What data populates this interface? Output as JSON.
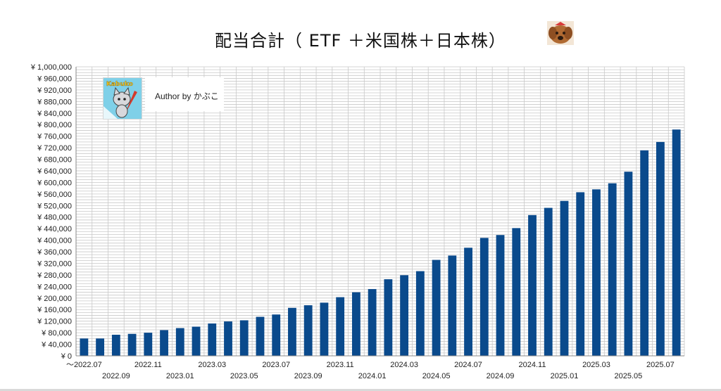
{
  "title": "配当合計（ ETF ＋米国株＋日本株）",
  "author_label": "Author by かぶこ",
  "logo_text": "Kabuko",
  "colors": {
    "bar": "#0a4a8c",
    "grid": "#c8c8c8",
    "axis": "#888888"
  },
  "chart_data": {
    "type": "bar",
    "title": "配当合計（ ETF ＋米国株＋日本株）",
    "xlabel": "",
    "ylabel": "",
    "ylim": [
      0,
      1000000
    ],
    "y_ticks": [
      "¥ 0",
      "¥ 40,000",
      "¥ 80,000",
      "¥ 120,000",
      "¥ 160,000",
      "¥ 200,000",
      "¥ 240,000",
      "¥ 280,000",
      "¥ 320,000",
      "¥ 360,000",
      "¥ 400,000",
      "¥ 440,000",
      "¥ 480,000",
      "¥ 520,000",
      "¥ 560,000",
      "¥ 600,000",
      "¥ 640,000",
      "¥ 680,000",
      "¥ 720,000",
      "¥ 760,000",
      "¥ 800,000",
      "¥ 840,000",
      "¥ 880,000",
      "¥ 920,000",
      "¥ 960,000",
      "¥ 1,000,000"
    ],
    "x_tick_labels": [
      "～2022.07",
      "2022.09",
      "2022.11",
      "2023.01",
      "2023.03",
      "2023.05",
      "2023.07",
      "2023.09",
      "2023.11",
      "2024.01",
      "2024.03",
      "2024.05",
      "2024.07",
      "2024.09",
      "2024.11",
      "2025.01",
      "2025.03",
      "2025.05",
      "2025.07"
    ],
    "categories": [
      "～2022.07",
      "2022.08",
      "2022.09",
      "2022.10",
      "2022.11",
      "2022.12",
      "2023.01",
      "2023.02",
      "2023.03",
      "2023.04",
      "2023.05",
      "2023.06",
      "2023.07",
      "2023.08",
      "2023.09",
      "2023.10",
      "2023.11",
      "2023.12",
      "2024.01",
      "2024.02",
      "2024.03",
      "2024.04",
      "2024.05",
      "2024.06",
      "2024.07",
      "2024.08",
      "2024.09",
      "2024.10",
      "2024.11",
      "2024.12",
      "2025.01",
      "2025.02",
      "2025.03",
      "2025.04",
      "2025.05",
      "2025.06",
      "2025.07",
      "2025.08"
    ],
    "values": [
      60000,
      60000,
      73000,
      76000,
      80000,
      89000,
      96000,
      101000,
      112000,
      119000,
      123000,
      135000,
      143000,
      166000,
      175000,
      184000,
      203000,
      220000,
      231000,
      265000,
      279000,
      293000,
      332000,
      347000,
      374000,
      408000,
      418000,
      442000,
      487000,
      512000,
      536000,
      566000,
      576000,
      597000,
      637000,
      711000,
      740000,
      783000
    ],
    "grid": true,
    "legend": "none"
  }
}
